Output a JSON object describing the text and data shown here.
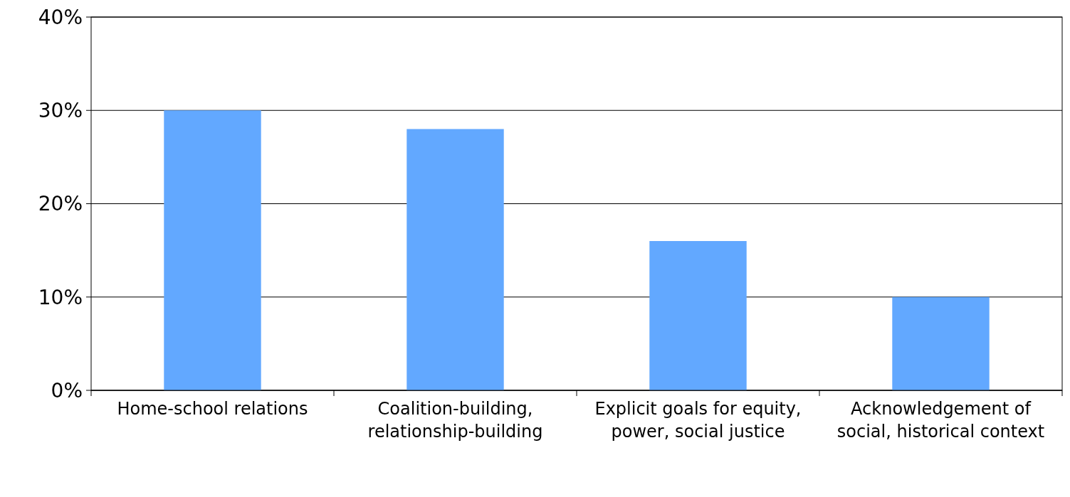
{
  "chart_data": {
    "type": "bar",
    "categories": [
      "Home-school relations",
      "Coalition-building, relationship-building",
      "Explicit goals for equity, power, social justice",
      "Acknowledgement of social, historical context"
    ],
    "values": [
      30,
      28,
      16,
      10
    ],
    "color": "#62a8ff",
    "ylim": [
      0,
      40
    ],
    "yticks": [
      {
        "value": 0,
        "label": "0%"
      },
      {
        "value": 10,
        "label": "10%"
      },
      {
        "value": 20,
        "label": "20%"
      },
      {
        "value": 30,
        "label": "30%"
      },
      {
        "value": 40,
        "label": "40%"
      }
    ],
    "grid": "y"
  }
}
